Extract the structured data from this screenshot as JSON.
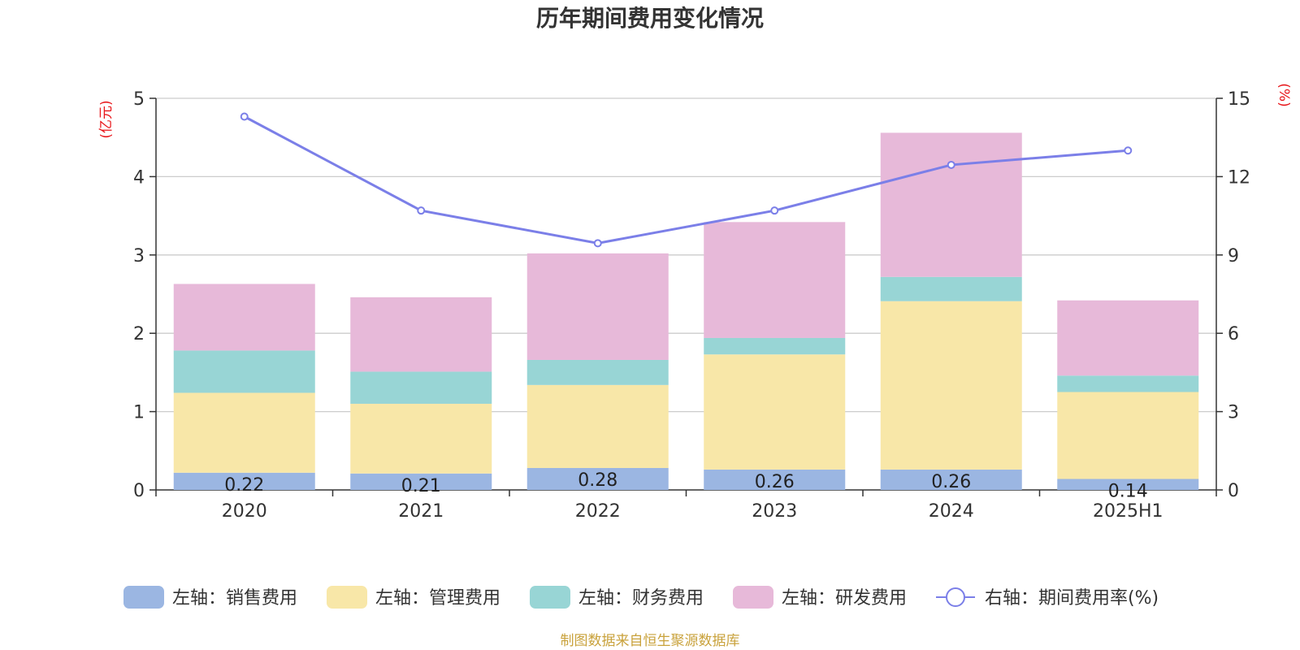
{
  "chart_data": {
    "type": "bar",
    "title": "历年期间费用变化情况",
    "left_unit": "(亿元)",
    "right_unit": "(%)",
    "categories": [
      "2020",
      "2021",
      "2022",
      "2023",
      "2024",
      "2025H1"
    ],
    "left_axis": {
      "min": 0,
      "max": 5,
      "ticks": [
        "0",
        "1",
        "2",
        "3",
        "4",
        "5"
      ]
    },
    "right_axis": {
      "min": 0,
      "max": 15,
      "ticks": [
        "0",
        "3",
        "6",
        "9",
        "12",
        "15"
      ]
    },
    "grid": true,
    "stacked": true,
    "series": [
      {
        "name": "左轴：销售费用",
        "axis": "left",
        "color": "#9bb6e2",
        "values": [
          0.22,
          0.21,
          0.28,
          0.26,
          0.26,
          0.14
        ],
        "labels": [
          "0.22",
          "0.21",
          "0.28",
          "0.26",
          "0.26",
          "0.14"
        ]
      },
      {
        "name": "左轴：管理费用",
        "axis": "left",
        "color": "#f8e7a8",
        "values": [
          1.02,
          0.89,
          1.06,
          1.47,
          2.15,
          1.11
        ]
      },
      {
        "name": "左轴：财务费用",
        "axis": "left",
        "color": "#98d5d5",
        "values": [
          0.54,
          0.41,
          0.32,
          0.21,
          0.31,
          0.21
        ]
      },
      {
        "name": "左轴：研发费用",
        "axis": "left",
        "color": "#e7b9d9",
        "values": [
          0.85,
          0.95,
          1.36,
          1.48,
          1.84,
          0.96
        ]
      },
      {
        "name": "右轴：期间费用率(%)",
        "axis": "right",
        "type": "line",
        "color": "#7b7fe8",
        "values": [
          14.3,
          10.7,
          9.45,
          10.7,
          12.45,
          13.0
        ]
      }
    ],
    "legend_position": "bottom",
    "unit_color": "#e8161a"
  },
  "source": {
    "text": "制图数据来自恒生聚源数据库",
    "color": "#c9a23c"
  }
}
